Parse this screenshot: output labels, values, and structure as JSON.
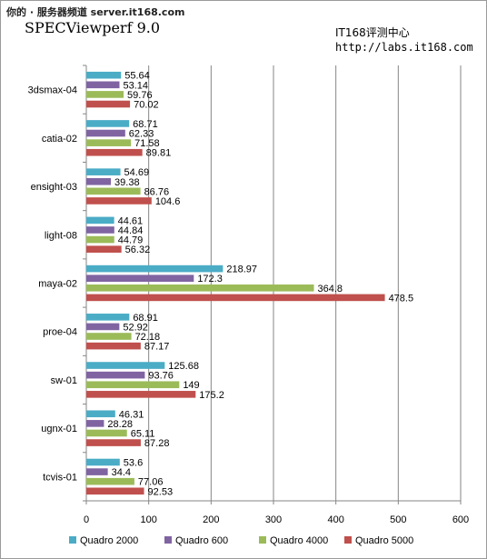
{
  "header": {
    "watermark": "你的 · 服务器频道 server.it168.com",
    "title": "SPECViewperf 9.0",
    "site": "IT168评测中心",
    "url": "http://labs.it168.com"
  },
  "chart_data": {
    "type": "bar",
    "orientation": "horizontal",
    "categories": [
      "3dsmax-04",
      "catia-02",
      "ensight-03",
      "light-08",
      "maya-02",
      "proe-04",
      "sw-01",
      "ugnx-01",
      "tcvis-01"
    ],
    "series": [
      {
        "name": "Quadro  2000",
        "color": "#4bacc6",
        "values": [
          55.64,
          68.71,
          54.69,
          44.61,
          218.97,
          68.91,
          125.68,
          46.31,
          53.6
        ]
      },
      {
        "name": "Quadro 600",
        "color": "#8064a2",
        "values": [
          53.14,
          62.33,
          39.38,
          44.84,
          172.3,
          52.92,
          93.76,
          28.28,
          34.4
        ]
      },
      {
        "name": "Quadro  4000",
        "color": "#9bbb59",
        "values": [
          59.76,
          71.58,
          86.76,
          44.79,
          364.8,
          72.18,
          149,
          65.11,
          77.06
        ]
      },
      {
        "name": "Quadro 5000",
        "color": "#c0504d",
        "values": [
          70.02,
          89.81,
          104.6,
          56.32,
          478.5,
          87.17,
          175.2,
          87.28,
          92.53
        ]
      }
    ],
    "labels": [
      [
        "55.64",
        "68.71",
        "54.69",
        "44.61",
        "218.97",
        "68.91",
        "125.68",
        "46.31",
        "53.6"
      ],
      [
        "53.14",
        "62.33",
        "39.38",
        "44.84",
        "172.3",
        "52.92",
        "93.76",
        "28.28",
        "34.4"
      ],
      [
        "59.76",
        "71.58",
        "86.76",
        "44.79",
        "364.8",
        "72.18",
        "149",
        "65.11",
        "77.06"
      ],
      [
        "70.02",
        "89.81",
        "104.6",
        "56.32",
        "478.5",
        "87.17",
        "175.2",
        "87.28",
        "92.53"
      ]
    ],
    "xlim": [
      0,
      600
    ],
    "xticks": [
      0,
      100,
      200,
      300,
      400,
      500,
      600
    ],
    "grid": "vertical",
    "legend": "bottom"
  }
}
